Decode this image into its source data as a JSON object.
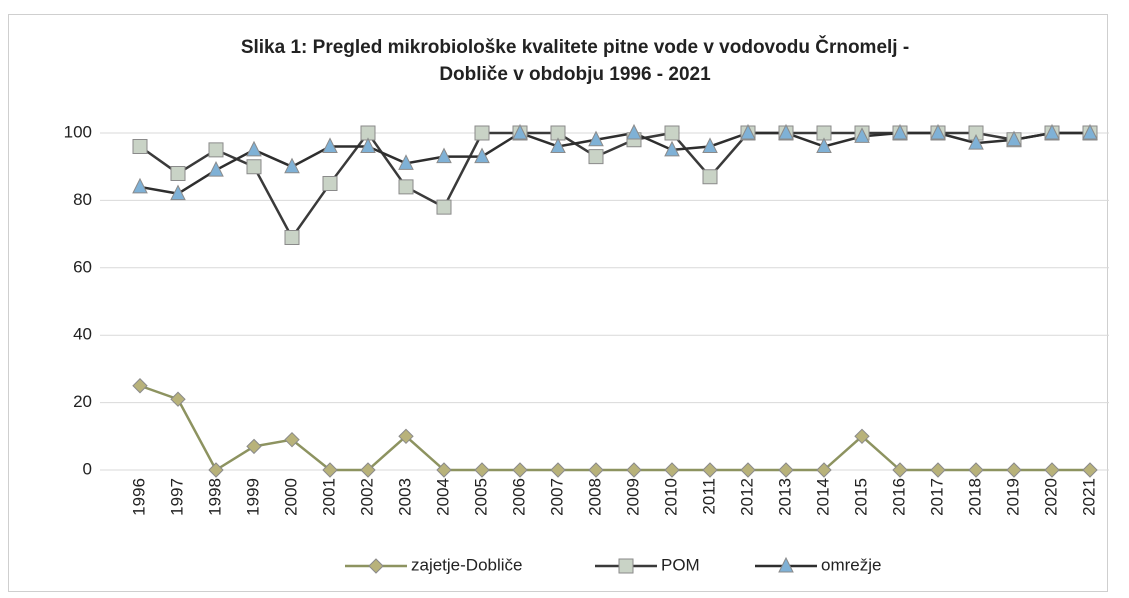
{
  "chart_data": {
    "type": "line",
    "title": "Slika 1: Pregled mikrobiološke kvalitete pitne vode v vodovodu Črnomelj - Dobliče v obdobju 1996 - 2021",
    "categories": [
      "1996",
      "1997",
      "1998",
      "1999",
      "2000",
      "2001",
      "2002",
      "2003",
      "2004",
      "2005",
      "2006",
      "2007",
      "2008",
      "2009",
      "2010",
      "2011",
      "2012",
      "2013",
      "2014",
      "2015",
      "2016",
      "2017",
      "2018",
      "2019",
      "2020",
      "2021"
    ],
    "series": [
      {
        "name": "zajetje-Dobliče",
        "color": "#8d9360",
        "marker": "diamond",
        "marker_color": "#b8b27a",
        "values": [
          25,
          21,
          0,
          7,
          9,
          0,
          0,
          10,
          0,
          0,
          0,
          0,
          0,
          0,
          0,
          0,
          0,
          0,
          0,
          10,
          0,
          0,
          0,
          0,
          0,
          0
        ]
      },
      {
        "name": "POM",
        "color": "#3a3a3a",
        "marker": "square",
        "marker_color": "#c9d3c6",
        "values": [
          96,
          88,
          95,
          90,
          69,
          85,
          100,
          84,
          78,
          100,
          100,
          100,
          93,
          98,
          100,
          87,
          100,
          100,
          100,
          100,
          100,
          100,
          100,
          98,
          100,
          100
        ]
      },
      {
        "name": "omrežje",
        "color": "#2e2e2e",
        "marker": "triangle",
        "marker_color": "#7fb1d6",
        "values": [
          84,
          82,
          89,
          95,
          90,
          96,
          96,
          91,
          93,
          93,
          100,
          96,
          98,
          100,
          95,
          96,
          100,
          100,
          96,
          99,
          100,
          100,
          97,
          98,
          100,
          100
        ]
      }
    ],
    "ylim": [
      0,
      100
    ],
    "yticks": [
      0,
      20,
      40,
      60,
      80,
      100
    ],
    "grid": true,
    "legend": "bottom"
  }
}
